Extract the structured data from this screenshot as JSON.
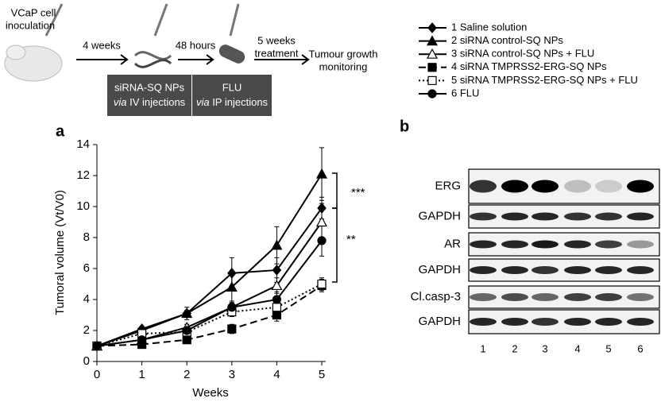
{
  "figure": {
    "panel_a": "a",
    "panel_b": "b"
  },
  "schematic": {
    "inoculation": [
      "VCaP cell",
      "inoculation"
    ],
    "step1": "4 weeks",
    "step2": "48 hours",
    "step3": [
      "5 weeks",
      "treatment"
    ],
    "end": [
      "Tumour growth",
      "monitoring"
    ],
    "box1": {
      "line1": "siRNA-SQ NPs",
      "via": "via",
      "line2": "IV injections"
    },
    "box2": {
      "line1": "FLU",
      "via": "via",
      "line2": "IP injections"
    }
  },
  "chart_data": {
    "type": "line",
    "x_label": "Weeks",
    "y_label": "Tumoral volume (Vt/V0)",
    "x": [
      0,
      1,
      2,
      3,
      4,
      5
    ],
    "xlim": [
      0,
      5
    ],
    "xticks": [
      0,
      1,
      2,
      3,
      4,
      5
    ],
    "ylim": [
      0,
      14
    ],
    "yticks": [
      0,
      2,
      4,
      6,
      8,
      10,
      12,
      14
    ],
    "annotations": [
      "***",
      "**"
    ],
    "series": [
      {
        "name": "1 Saline solution",
        "color": "#000000",
        "marker": "diamond",
        "line_style": "solid",
        "values": [
          1,
          2.1,
          3.1,
          5.7,
          5.9,
          9.9
        ],
        "errors": [
          0,
          0.1,
          0.2,
          1.0,
          0.8,
          0.7
        ]
      },
      {
        "name": "2 siRNA control-SQ NPs",
        "color": "#000000",
        "marker": "triangle",
        "line_style": "solid",
        "values": [
          1,
          2.0,
          3.1,
          4.8,
          7.5,
          12.1
        ],
        "errors": [
          0,
          0.1,
          0.4,
          1.0,
          1.2,
          1.7
        ]
      },
      {
        "name": "3 siRNA control-SQ NPs + FLU",
        "color": "#000000",
        "marker": "triangle-open",
        "line_style": "solid",
        "values": [
          1,
          1.4,
          2.2,
          3.5,
          4.9,
          9.0
        ],
        "errors": [
          0,
          0.1,
          0.2,
          0.4,
          0.5,
          1.2
        ]
      },
      {
        "name": "4 siRNA TMPRSS2-ERG-SQ NPs",
        "color": "#000000",
        "marker": "square",
        "line_style": "dashed",
        "values": [
          1,
          1.1,
          1.4,
          2.1,
          3.0,
          4.9
        ],
        "errors": [
          0,
          0.1,
          0.1,
          0.3,
          0.4,
          0.4
        ]
      },
      {
        "name": "5 siRNA TMPRSS2-ERG-SQ NPs + FLU",
        "color": "#000000",
        "marker": "square-open",
        "line_style": "dotted",
        "values": [
          1,
          1.8,
          1.9,
          3.2,
          3.5,
          5.0
        ],
        "errors": [
          0,
          0.1,
          0.2,
          0.3,
          0.4,
          0.4
        ]
      },
      {
        "name": "6 FLU",
        "color": "#000000",
        "marker": "circle",
        "line_style": "solid",
        "values": [
          1,
          1.4,
          2.0,
          3.5,
          4.0,
          7.8
        ],
        "errors": [
          0,
          0.1,
          0.2,
          0.3,
          0.5,
          1.0
        ]
      }
    ]
  },
  "blot": {
    "rows": [
      "ERG",
      "GAPDH",
      "AR",
      "GAPDH",
      "Cl.casp-3",
      "GAPDH"
    ],
    "lanes": [
      "1",
      "2",
      "3",
      "4",
      "5",
      "6"
    ]
  }
}
